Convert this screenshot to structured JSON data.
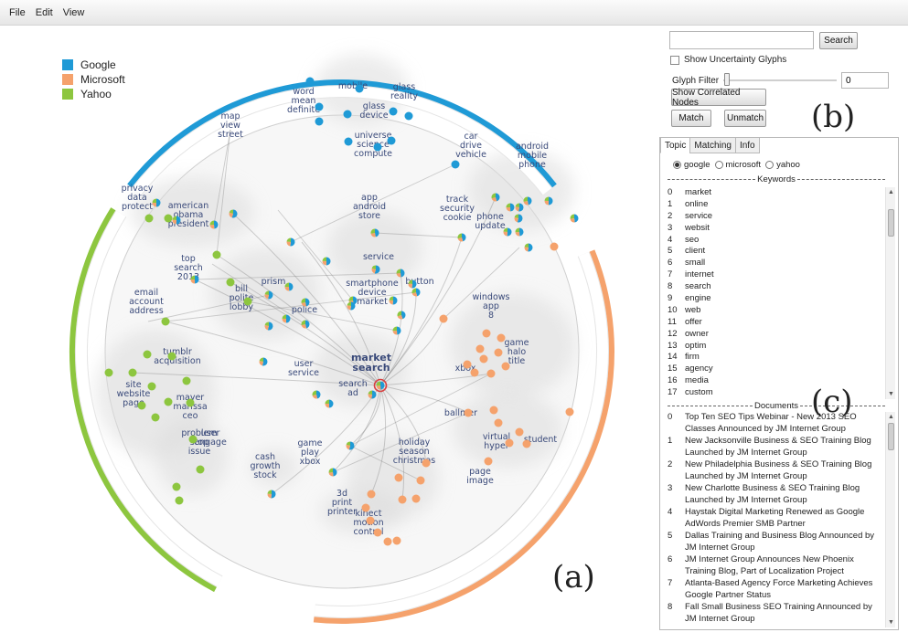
{
  "menu": [
    "File",
    "Edit",
    "View"
  ],
  "legend": [
    {
      "label": "Google",
      "color": "#1f9ad6"
    },
    {
      "label": "Microsoft",
      "color": "#f5a26c"
    },
    {
      "label": "Yahoo",
      "color": "#8dc63f"
    }
  ],
  "panel_labels": {
    "a": "(a)",
    "b": "(b)",
    "c": "(c)"
  },
  "controls": {
    "search_value": "",
    "search_button": "Search",
    "uncertainty_label": "Show Uncertainty Glyphs",
    "glyph_filter_label": "Glyph Filter",
    "glyph_filter_value": "0",
    "glyph_filter_level": 0,
    "correlated_button": "Show Correlated Nodes",
    "match_button": "Match",
    "unmatch_button": "Unmatch"
  },
  "tabs": [
    "Topic",
    "Matching",
    "Info"
  ],
  "active_tab": "Topic",
  "radio_options": [
    "google",
    "microsoft",
    "yahoo"
  ],
  "selected_option": "google",
  "keywords_header": "Keywords",
  "keywords": [
    "market",
    "online",
    "service",
    "websit",
    "seo",
    "client",
    "small",
    "internet",
    "search",
    "engine",
    "web",
    "offer",
    "owner",
    "optim",
    "firm",
    "agency",
    "media",
    "custom"
  ],
  "documents_header": "Documents",
  "documents": [
    "Top Ten SEO Tips Webinar - New 2013 SEO Classes Announced by JM Internet Group",
    "New Jacksonville Business & SEO Training Blog Launched by JM Internet Group",
    "New Philadelphia Business & SEO Training Blog Launched by JM Internet Group",
    "New Charlotte Business & SEO Training Blog Launched by JM Internet Group",
    "Haystak Digital Marketing Renewed as Google AdWords Premier SMB Partner",
    "Dallas Training and Business Blog Announced by JM Internet Group",
    "JM Internet Group Announces New Phoenix Training Blog, Part of Localization Project",
    "Atlanta-Based Agency Force Marketing Achieves Google Partner Status",
    "Fall Small Business SEO Training Announced by JM Internet Group"
  ],
  "topic_labels": [
    "mobile",
    "glass reality",
    "glass device",
    "word mean definite",
    "map view street",
    "universe science compute",
    "car drive vehicle",
    "android mobile phone",
    "track security cookie",
    "phone update",
    "privacy data protect",
    "american obama president",
    "app android store",
    "top search 2013",
    "service",
    "button",
    "prism",
    "smartphone device market",
    "bill polite lobby",
    "police",
    "email account address",
    "windows app 8",
    "tumblr acquisition",
    "game halo title",
    "user service",
    "market search",
    "xbox",
    "search ad",
    "site website page",
    "mayer marissa ceo",
    "ballmer",
    "user engage",
    "virtual hyper",
    "student",
    "problem stop issue",
    "holiday season christmas",
    "game play xbox",
    "page image",
    "cash growth stock",
    "3d print printer",
    "kinect motion control"
  ]
}
